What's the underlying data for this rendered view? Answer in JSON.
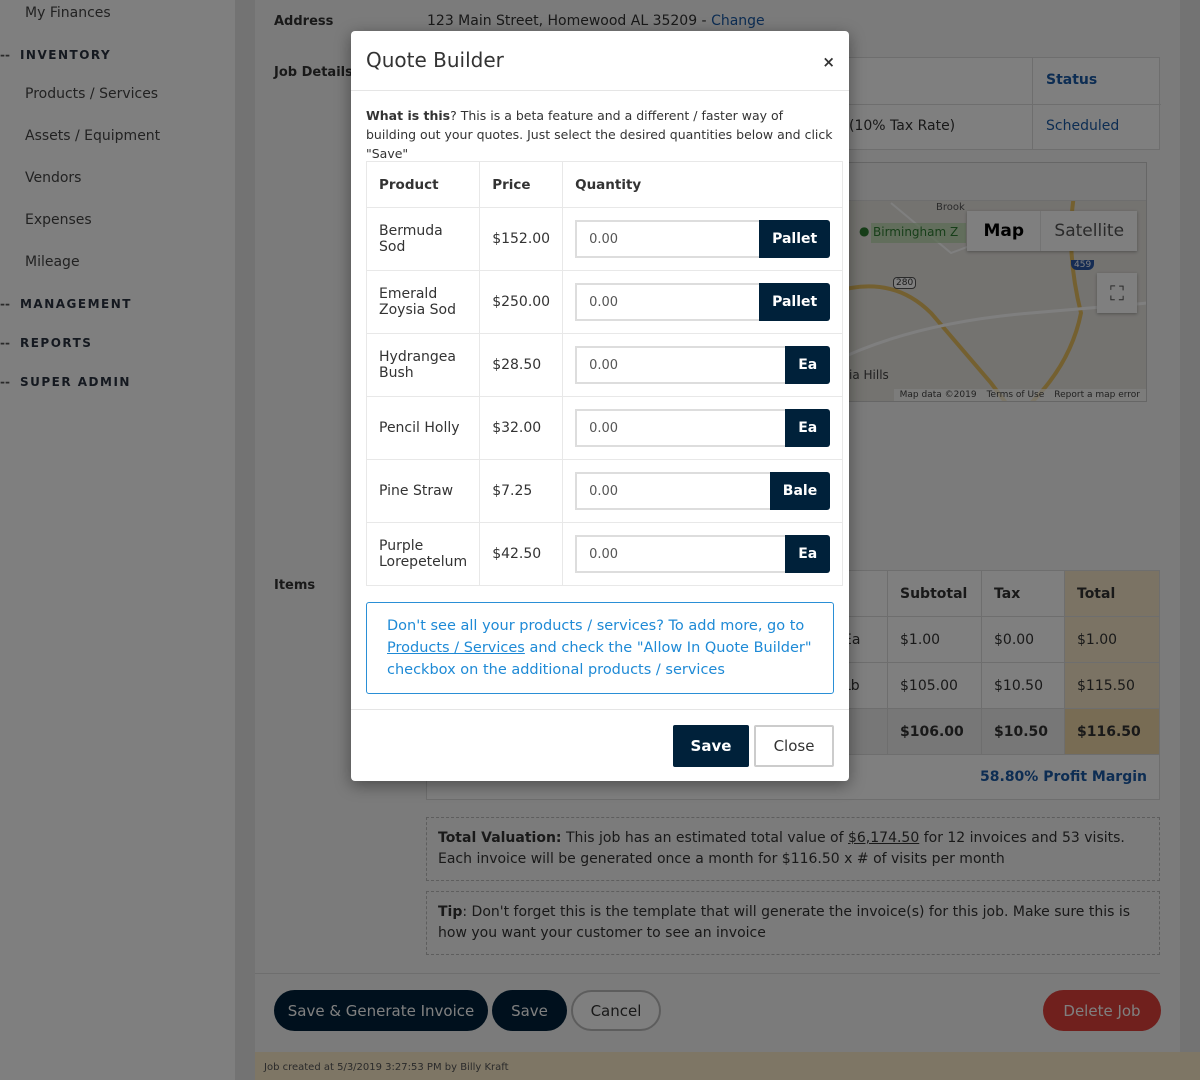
{
  "sidebar": {
    "top_item": "My Finances",
    "sections": [
      {
        "label": "INVENTORY",
        "items": [
          "Products / Services",
          "Assets / Equipment",
          "Vendors",
          "Expenses",
          "Mileage"
        ]
      },
      {
        "label": "MANAGEMENT"
      },
      {
        "label": "REPORTS"
      },
      {
        "label": "SUPER ADMIN"
      }
    ]
  },
  "job": {
    "address_label": "Address",
    "address": "123 Main Street, Homewood AL 35209 - ",
    "change_link": "Change",
    "details_label": "Job Details",
    "status_header": "Status",
    "tax_rate": "(10% Tax Rate)",
    "status": "Scheduled",
    "items_label": "Items",
    "map": {
      "map_btn": "Map",
      "satellite_btn": "Satellite",
      "place": "Birmingham Z",
      "place2": "ia Hills",
      "road1": "280",
      "road2": "459",
      "top": "Brook",
      "attribution": [
        "Map data ©2019",
        "Terms of Use",
        "Report a map error"
      ]
    },
    "items_table": {
      "headers": [
        "Subtotal",
        "Tax",
        "Total"
      ],
      "rows": [
        {
          "unit": "Ea",
          "subtotal": "$1.00",
          "tax": "$0.00",
          "total": "$1.00"
        },
        {
          "unit": "Lb",
          "subtotal": "$105.00",
          "tax": "$10.50",
          "total": "$115.50"
        }
      ],
      "totals": {
        "subtotal": "$106.00",
        "tax": "$10.50",
        "total": "$116.50"
      }
    },
    "profit_margin": "58.80% Profit Margin",
    "valuation": {
      "label": "Total Valuation:",
      "text1": " This job has an estimated total value of ",
      "amount": "$6,174.50",
      "text2": " for 12 invoices and 53 visits. Each invoice will be generated once a month for $116.50 x # of visits per month"
    },
    "tip": {
      "label": "Tip",
      "text": ": Don't forget this is the template that will generate the invoice(s) for this job. Make sure this is how you want your customer to see an invoice"
    },
    "buttons": {
      "save_generate": "Save & Generate Invoice",
      "save": "Save",
      "cancel": "Cancel",
      "delete": "Delete Job"
    },
    "footer": "Job created at 5/3/2019 3:27:53 PM by Billy Kraft"
  },
  "modal": {
    "title": "Quote Builder",
    "close": "×",
    "intro_bold": "What is this",
    "intro": "? This is a beta feature and a different / faster way of building out your quotes. Just select the desired quantities below and click \"Save\"",
    "headers": [
      "Product",
      "Price",
      "Quantity"
    ],
    "rows": [
      {
        "product": "Bermuda Sod",
        "price": "$152.00",
        "qty": "0.00",
        "unit": "Pallet"
      },
      {
        "product": "Emerald Zoysia Sod",
        "price": "$250.00",
        "qty": "0.00",
        "unit": "Pallet"
      },
      {
        "product": "Hydrangea Bush",
        "price": "$28.50",
        "qty": "0.00",
        "unit": "Ea"
      },
      {
        "product": "Pencil Holly",
        "price": "$32.00",
        "qty": "0.00",
        "unit": "Ea"
      },
      {
        "product": "Pine Straw",
        "price": "$7.25",
        "qty": "0.00",
        "unit": "Bale"
      },
      {
        "product": "Purple Lorepetelum",
        "price": "$42.50",
        "qty": "0.00",
        "unit": "Ea"
      }
    ],
    "info_text1": "Don't see all your products / services? To add more, go to ",
    "info_link": "Products / Services",
    "info_text2": " and check the \"Allow In Quote Builder\" checkbox on the additional products / services",
    "save": "Save",
    "close_btn": "Close"
  },
  "colors": {
    "primary": "#00213a",
    "link": "#1a5aa6",
    "danger": "#c0392b",
    "info": "#1e8ad6",
    "total_col": "#f6e7c8"
  }
}
